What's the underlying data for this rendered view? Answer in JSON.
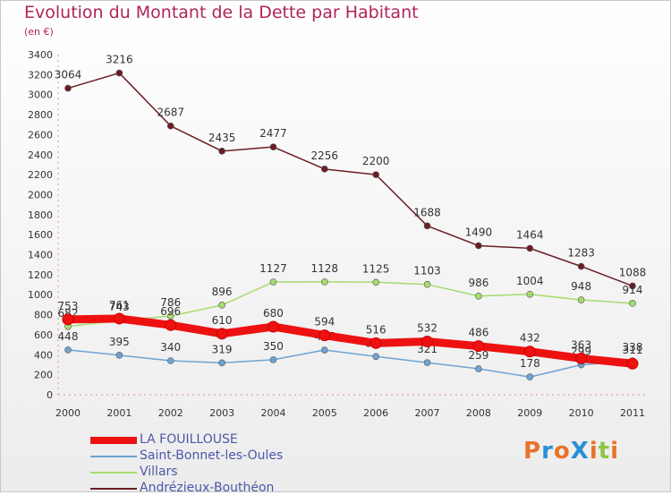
{
  "title": "Evolution du Montant de la Dette par Habitant",
  "subtitle": "(en €)",
  "logo": {
    "text": "ProXiti",
    "colors": [
      "#e8742a",
      "#2a8fd6",
      "#e8742a",
      "#2a8fd6",
      "#e8742a",
      "#8cc63f",
      "#e8742a"
    ]
  },
  "chart_data": {
    "type": "line",
    "x": [
      "2000",
      "2001",
      "2002",
      "2003",
      "2004",
      "2005",
      "2006",
      "2007",
      "2008",
      "2009",
      "2010",
      "2011"
    ],
    "ylim": [
      0,
      3400
    ],
    "yticks": [
      0,
      200,
      400,
      600,
      800,
      1000,
      1200,
      1400,
      1600,
      1800,
      2000,
      2200,
      2400,
      2600,
      2800,
      3000,
      3200,
      3400
    ],
    "grid": false,
    "legend_position": "bottom-left",
    "series": [
      {
        "name": "Andrézieux-Bouthéon",
        "color": "#6b1d24",
        "values": [
          3064,
          3216,
          2687,
          2435,
          2477,
          2256,
          2200,
          1688,
          1490,
          1464,
          1283,
          1088
        ]
      },
      {
        "name": "Villars",
        "color": "#a5dc6e",
        "values": [
          682,
          743,
          786,
          896,
          1127,
          1128,
          1125,
          1103,
          986,
          1004,
          948,
          914
        ]
      },
      {
        "name": "Saint-Bonnet-les-Oules",
        "color": "#6fa3d2",
        "values": [
          448,
          395,
          340,
          319,
          350,
          447,
          382,
          321,
          259,
          178,
          299,
          338
        ]
      },
      {
        "name": "LA FOUILLOUSE",
        "color": "#ee1111",
        "values": [
          753,
          761,
          696,
          610,
          680,
          594,
          516,
          532,
          486,
          432,
          363,
          311
        ]
      }
    ],
    "legend": [
      "LA FOUILLOUSE",
      "Saint-Bonnet-les-Oules",
      "Villars",
      "Andrézieux-Bouthéon"
    ]
  }
}
